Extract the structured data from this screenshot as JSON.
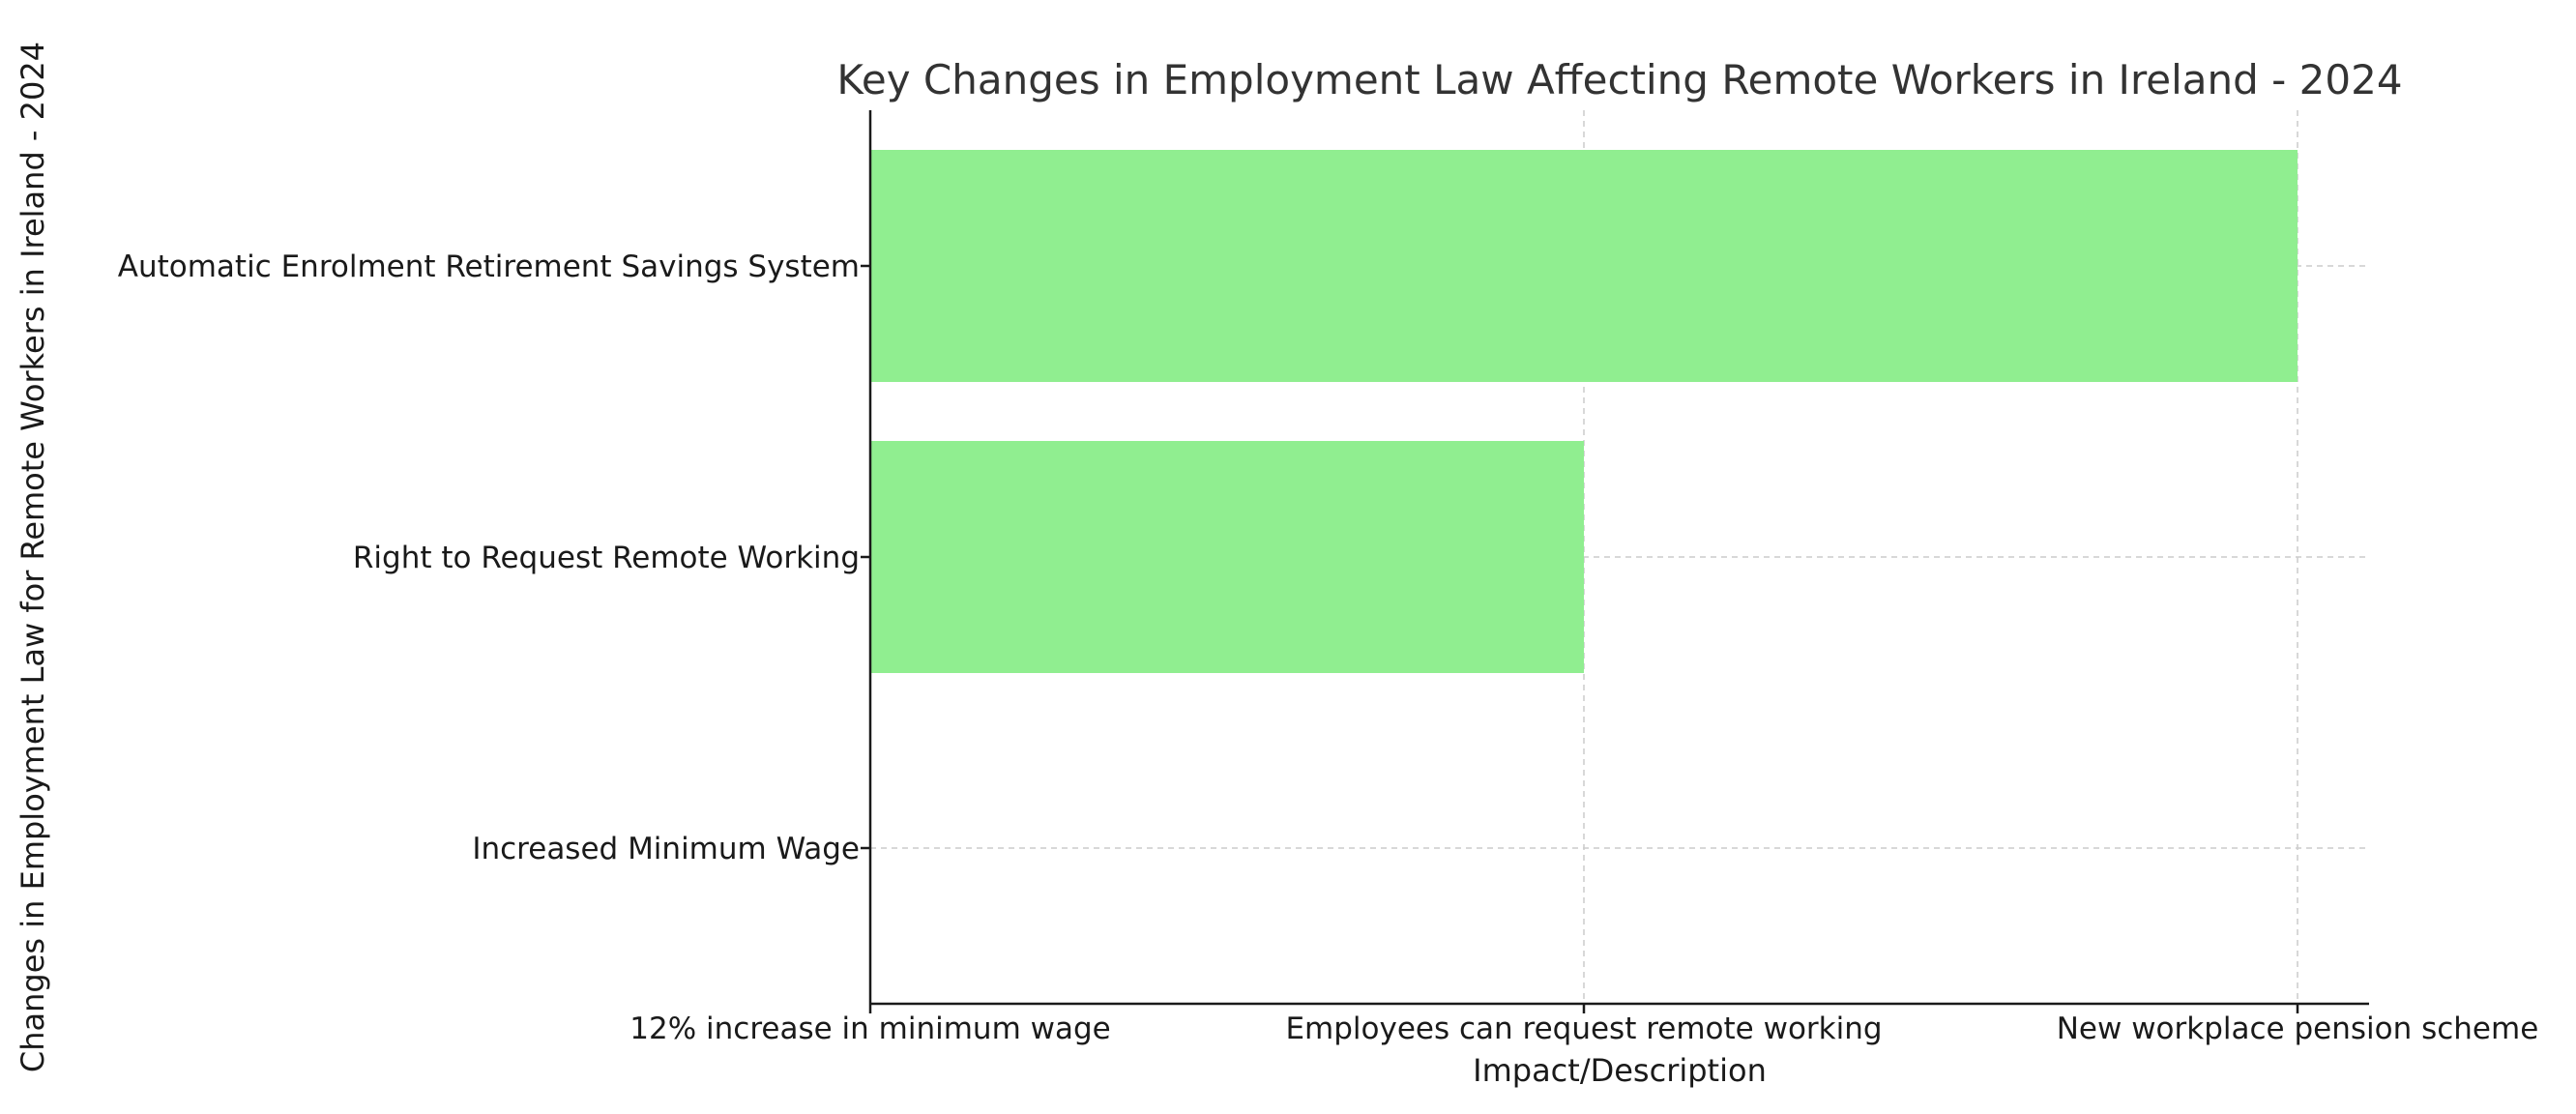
{
  "chart_data": {
    "type": "bar",
    "orientation": "horizontal",
    "title": "Key Changes in Employment Law Affecting Remote Workers in Ireland - 2024",
    "xlabel": "Impact/Description",
    "ylabel": "Changes in Employment Law for Remote Workers in Ireland - 2024",
    "categories": [
      "Increased Minimum Wage",
      "Right to Request Remote Working",
      "Automatic Enrolment Retirement Savings System"
    ],
    "x_tick_labels": [
      "12% increase in minimum wage",
      "Employees can request remote working",
      "New workplace pension scheme"
    ],
    "values": [
      "12% increase in minimum wage",
      "Employees can request remote working",
      "New workplace pension scheme"
    ],
    "grid": true,
    "bar_color": "#90ee90"
  }
}
